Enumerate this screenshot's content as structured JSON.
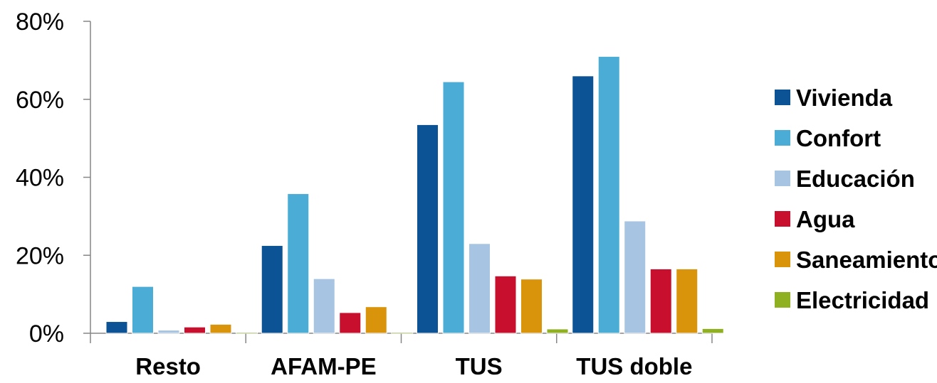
{
  "chart_data": {
    "type": "bar",
    "categories": [
      "Resto",
      "AFAM-PE",
      "TUS",
      "TUS doble"
    ],
    "series": [
      {
        "name": "Vivienda",
        "color": "#0B5394",
        "values": [
          3,
          22.5,
          53.5,
          66
        ]
      },
      {
        "name": "Confort",
        "color": "#4BACD6",
        "values": [
          12,
          35.8,
          64.5,
          71
        ]
      },
      {
        "name": "Educación",
        "color": "#A7C4E2",
        "values": [
          0.8,
          14,
          23,
          28.8
        ]
      },
      {
        "name": "Agua",
        "color": "#C8102E",
        "values": [
          1.6,
          5.3,
          14.7,
          16.5
        ]
      },
      {
        "name": "Saneamiento",
        "color": "#D9940B",
        "values": [
          2.3,
          6.8,
          13.9,
          16.5
        ]
      },
      {
        "name": "Electricidad",
        "color": "#8FB020",
        "values": [
          0.1,
          0.1,
          1.1,
          1.2
        ]
      }
    ],
    "y_ticks": [
      "0%",
      "20%",
      "40%",
      "60%",
      "80%"
    ],
    "ylim": [
      0,
      80
    ],
    "legend_position": "right",
    "grid": false
  }
}
